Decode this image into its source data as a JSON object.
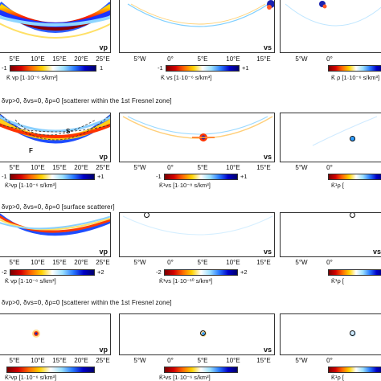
{
  "rows": [
    {
      "panels": [
        {
          "tag": "vp",
          "ticks": [
            "5°E",
            "10°E",
            "15°E",
            "20°E",
            "25°E"
          ],
          "kernel": "K̄ vp [1·10⁻⁶ s/km³]",
          "cbar_min": "-1",
          "cbar_max": "1"
        },
        {
          "tag": "vs",
          "ticks": [
            "5°W",
            "0°",
            "5°E",
            "10°E",
            "15°E"
          ],
          "kernel": "K̄ vs [1·10⁻⁶ s/km³]",
          "cbar_min": "-1",
          "cbar_max": "+1"
        },
        {
          "tag": "",
          "ticks": [
            "5°W",
            "0°"
          ],
          "kernel": "K̄ ρ [1·10⁻⁶ s/km³]",
          "cbar_min": "",
          "cbar_max": ""
        }
      ]
    },
    {
      "condition": "δvp>0, δvs=0, δρ=0   [scatterer within the 1st Fresnel zone]",
      "marks": {
        "s": "S",
        "f": "F"
      },
      "panels": [
        {
          "tag": "vp",
          "ticks": [
            "5°E",
            "10°E",
            "15°E",
            "20°E",
            "25°E"
          ],
          "kernel": "K̄¹vp [1·10⁻⁶ s/km³]",
          "cbar_min": "-1",
          "cbar_max": "+1"
        },
        {
          "tag": "vs",
          "ticks": [
            "5°W",
            "0°",
            "5°E",
            "10°E",
            "15°E"
          ],
          "kernel": "K̄¹vs [1·10⁻⁸ s/km³]",
          "cbar_min": "-1",
          "cbar_max": "+1"
        },
        {
          "tag": "",
          "ticks": [
            "5°W",
            "0°"
          ],
          "kernel": "K̄¹ρ [",
          "cbar_min": "",
          "cbar_max": ""
        }
      ]
    },
    {
      "condition": "δvp>0, δvs=0, δρ=0   [surface scatterer]",
      "panels": [
        {
          "tag": "vp",
          "ticks": [
            "5°E",
            "10°E",
            "15°E",
            "20°E",
            "25°E"
          ],
          "kernel": "K̄ vp [1·10⁻⁶ s/km³]",
          "cbar_min": "-2",
          "cbar_max": "+2"
        },
        {
          "tag": "vs",
          "ticks": [
            "5°W",
            "0°",
            "5°E",
            "10°E",
            "15°E"
          ],
          "kernel": "K̄¹vs [1·10⁻¹⁰ s/km³]",
          "cbar_min": "-2",
          "cbar_max": "+2"
        },
        {
          "tag": "vs",
          "ticks": [
            "5°W",
            "0°"
          ],
          "kernel": "K̄¹ρ [",
          "cbar_min": "",
          "cbar_max": ""
        }
      ]
    },
    {
      "condition": "δvp>0, δvs=0, δρ=0   [scatterer within the 1st Fresnel zone]",
      "panels": [
        {
          "tag": "vp",
          "ticks": [
            "5°E",
            "10°E",
            "15°E",
            "20°E",
            "25°E"
          ],
          "kernel": "K̄¹vp [1·10⁻⁶ s/km³]",
          "cbar_min": "",
          "cbar_max": ""
        },
        {
          "tag": "vs",
          "ticks": [
            "5°W",
            "0°",
            "5°E",
            "10°E",
            "15°E"
          ],
          "kernel": "K̄¹vs [1·10⁻⁶ s/km³]",
          "cbar_min": "",
          "cbar_max": ""
        },
        {
          "tag": "",
          "ticks": [
            "5°W",
            "0°"
          ],
          "kernel": "K̄¹ρ [",
          "cbar_min": "",
          "cbar_max": ""
        }
      ]
    }
  ]
}
